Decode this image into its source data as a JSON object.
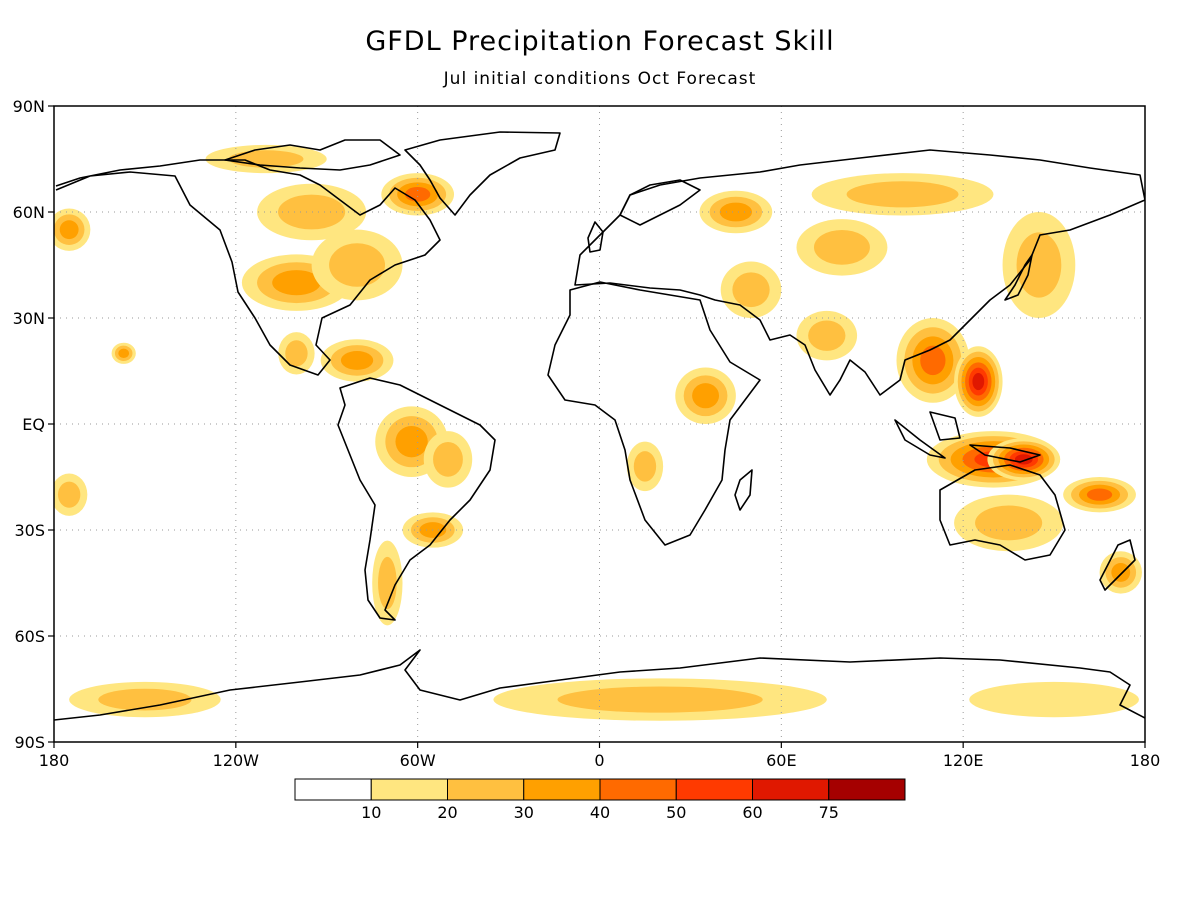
{
  "title": "GFDL Precipitation Forecast Skill",
  "subtitle": "Jul initial conditions  Oct Forecast",
  "colors": {
    "land_outline": "#000000",
    "grid": "#9a9a9a",
    "shading": [
      "#ffffff",
      "#ffe680",
      "#ffc040",
      "#ffa000",
      "#ff6a00",
      "#ff3a00",
      "#e01800",
      "#a50000"
    ]
  },
  "map": {
    "lon_range": [
      -180,
      180
    ],
    "lat_range": [
      -90,
      90
    ],
    "lon_ticks": [
      {
        "value": -180,
        "label": "180"
      },
      {
        "value": -120,
        "label": "120W"
      },
      {
        "value": -60,
        "label": "60W"
      },
      {
        "value": 0,
        "label": "0"
      },
      {
        "value": 60,
        "label": "60E"
      },
      {
        "value": 120,
        "label": "120E"
      },
      {
        "value": 180,
        "label": "180"
      }
    ],
    "lat_ticks": [
      {
        "value": 90,
        "label": "90N"
      },
      {
        "value": 60,
        "label": "60N"
      },
      {
        "value": 30,
        "label": "30N"
      },
      {
        "value": 0,
        "label": "EQ"
      },
      {
        "value": -30,
        "label": "30S"
      },
      {
        "value": -60,
        "label": "60S"
      },
      {
        "value": -90,
        "label": "90S"
      }
    ],
    "skill_regions": [
      {
        "lon": -100,
        "lat": 40,
        "rx": 18,
        "ry": 8,
        "level": 3
      },
      {
        "lon": -80,
        "lat": 45,
        "rx": 15,
        "ry": 10,
        "level": 2
      },
      {
        "lon": -95,
        "lat": 60,
        "rx": 18,
        "ry": 8,
        "level": 2
      },
      {
        "lon": -60,
        "lat": 65,
        "rx": 12,
        "ry": 6,
        "level": 4
      },
      {
        "lon": -110,
        "lat": 75,
        "rx": 20,
        "ry": 4,
        "level": 2
      },
      {
        "lon": -157,
        "lat": 20,
        "rx": 4,
        "ry": 3,
        "level": 3
      },
      {
        "lon": -175,
        "lat": 55,
        "rx": 7,
        "ry": 6,
        "level": 3
      },
      {
        "lon": -80,
        "lat": 18,
        "rx": 12,
        "ry": 6,
        "level": 3
      },
      {
        "lon": -100,
        "lat": 20,
        "rx": 6,
        "ry": 6,
        "level": 2
      },
      {
        "lon": -62,
        "lat": -5,
        "rx": 12,
        "ry": 10,
        "level": 3
      },
      {
        "lon": -50,
        "lat": -10,
        "rx": 8,
        "ry": 8,
        "level": 2
      },
      {
        "lon": -55,
        "lat": -30,
        "rx": 10,
        "ry": 5,
        "level": 3
      },
      {
        "lon": -70,
        "lat": -45,
        "rx": 5,
        "ry": 12,
        "level": 2
      },
      {
        "lon": -175,
        "lat": -20,
        "rx": 6,
        "ry": 6,
        "level": 2
      },
      {
        "lon": 35,
        "lat": 8,
        "rx": 10,
        "ry": 8,
        "level": 3
      },
      {
        "lon": 15,
        "lat": -12,
        "rx": 6,
        "ry": 7,
        "level": 2
      },
      {
        "lon": 45,
        "lat": 60,
        "rx": 12,
        "ry": 6,
        "level": 3
      },
      {
        "lon": 50,
        "lat": 38,
        "rx": 10,
        "ry": 8,
        "level": 2
      },
      {
        "lon": 100,
        "lat": 65,
        "rx": 30,
        "ry": 6,
        "level": 2
      },
      {
        "lon": 80,
        "lat": 50,
        "rx": 15,
        "ry": 8,
        "level": 2
      },
      {
        "lon": 75,
        "lat": 25,
        "rx": 10,
        "ry": 7,
        "level": 2
      },
      {
        "lon": 110,
        "lat": 18,
        "rx": 12,
        "ry": 12,
        "level": 4
      },
      {
        "lon": 125,
        "lat": 12,
        "rx": 8,
        "ry": 10,
        "level": 6
      },
      {
        "lon": 130,
        "lat": -10,
        "rx": 22,
        "ry": 8,
        "level": 5
      },
      {
        "lon": 140,
        "lat": -10,
        "rx": 12,
        "ry": 6,
        "level": 6
      },
      {
        "lon": 165,
        "lat": -20,
        "rx": 12,
        "ry": 5,
        "level": 4
      },
      {
        "lon": 135,
        "lat": -28,
        "rx": 18,
        "ry": 8,
        "level": 2
      },
      {
        "lon": 145,
        "lat": 45,
        "rx": 12,
        "ry": 15,
        "level": 2
      },
      {
        "lon": 172,
        "lat": -42,
        "rx": 7,
        "ry": 6,
        "level": 3
      },
      {
        "lon": 20,
        "lat": -78,
        "rx": 55,
        "ry": 6,
        "level": 2
      },
      {
        "lon": 150,
        "lat": -78,
        "rx": 28,
        "ry": 5,
        "level": 1
      },
      {
        "lon": -150,
        "lat": -78,
        "rx": 25,
        "ry": 5,
        "level": 2
      }
    ]
  },
  "colorbar": {
    "labels": [
      "10",
      "20",
      "30",
      "40",
      "50",
      "60",
      "75"
    ]
  }
}
